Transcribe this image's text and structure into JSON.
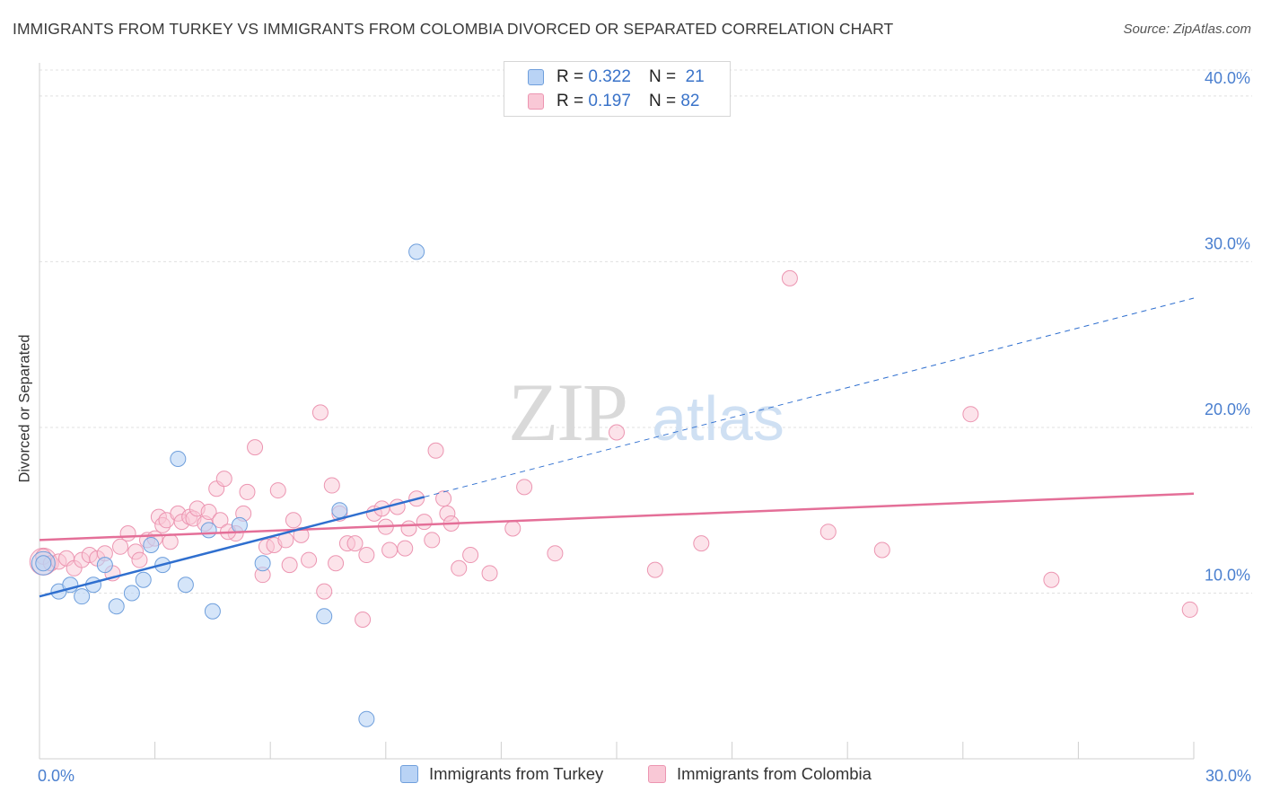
{
  "header": {
    "title": "IMMIGRANTS FROM TURKEY VS IMMIGRANTS FROM COLOMBIA DIVORCED OR SEPARATED CORRELATION CHART",
    "source": "Source: ZipAtlas.com"
  },
  "watermark": {
    "zip": "ZIP",
    "atlas": "atlas"
  },
  "colors": {
    "turkey_fill": "#b9d3f5",
    "turkey_stroke": "#6f9fdc",
    "turkey_line": "#2f6fcf",
    "colombia_fill": "#f9c8d6",
    "colombia_stroke": "#ec95b1",
    "colombia_line": "#e46f98",
    "tick_label": "#4a7fcf",
    "grid": "#e0e0e0"
  },
  "legend_top": {
    "rows": [
      {
        "r_label": "R =",
        "r_value": "0.322",
        "n_label": "N =",
        "n_value": "21"
      },
      {
        "r_label": "R =",
        "r_value": "0.197",
        "n_label": "N =",
        "n_value": "82"
      }
    ]
  },
  "chart_data": {
    "type": "scatter",
    "title": "IMMIGRANTS FROM TURKEY VS IMMIGRANTS FROM COLOMBIA DIVORCED OR SEPARATED CORRELATION CHART",
    "xlabel": "",
    "ylabel": "Divorced or Separated",
    "xlim": [
      0,
      30
    ],
    "ylim": [
      0,
      42
    ],
    "x_tick_labels": [
      {
        "value": 0,
        "label": "0.0%"
      },
      {
        "value": 30,
        "label": "30.0%"
      }
    ],
    "y_ticks": [
      {
        "value": 10,
        "label": "10.0%"
      },
      {
        "value": 20,
        "label": "20.0%"
      },
      {
        "value": 30,
        "label": "30.0%"
      },
      {
        "value": 40,
        "label": "40.0%"
      }
    ],
    "x_minor_ticks": [
      3,
      6,
      9,
      12,
      15,
      18,
      21,
      24,
      27,
      30
    ],
    "grid": true,
    "legend_position": "bottom",
    "series": [
      {
        "name": "Immigrants from Turkey",
        "R": 0.322,
        "N": 21,
        "trend": {
          "x0": 0,
          "y0": 9.8,
          "x1": 30,
          "y1": 27.8,
          "solid_until_x": 10.0
        },
        "points": [
          [
            0.1,
            11.8
          ],
          [
            0.5,
            10.1
          ],
          [
            0.8,
            10.5
          ],
          [
            1.1,
            9.8
          ],
          [
            1.4,
            10.5
          ],
          [
            1.7,
            11.7
          ],
          [
            2.0,
            9.2
          ],
          [
            2.4,
            10.0
          ],
          [
            2.7,
            10.8
          ],
          [
            2.9,
            12.9
          ],
          [
            3.2,
            11.7
          ],
          [
            3.6,
            18.1
          ],
          [
            3.8,
            10.5
          ],
          [
            4.4,
            13.8
          ],
          [
            4.5,
            8.9
          ],
          [
            5.2,
            14.1
          ],
          [
            5.8,
            11.8
          ],
          [
            7.4,
            8.6
          ],
          [
            7.8,
            15.0
          ],
          [
            8.5,
            2.4
          ],
          [
            9.8,
            30.6
          ]
        ]
      },
      {
        "name": "Immigrants from Colombia",
        "R": 0.197,
        "N": 82,
        "trend": {
          "x0": 0,
          "y0": 13.2,
          "x1": 30,
          "y1": 16.0
        },
        "points": [
          [
            0.1,
            12.2
          ],
          [
            0.3,
            11.8
          ],
          [
            0.5,
            11.9
          ],
          [
            0.7,
            12.1
          ],
          [
            0.9,
            11.5
          ],
          [
            1.1,
            12.0
          ],
          [
            1.3,
            12.3
          ],
          [
            1.5,
            12.1
          ],
          [
            1.7,
            12.4
          ],
          [
            1.9,
            11.2
          ],
          [
            2.1,
            12.8
          ],
          [
            2.3,
            13.6
          ],
          [
            2.5,
            12.5
          ],
          [
            2.6,
            12.0
          ],
          [
            2.8,
            13.2
          ],
          [
            3.0,
            13.3
          ],
          [
            3.1,
            14.6
          ],
          [
            3.2,
            14.1
          ],
          [
            3.3,
            14.4
          ],
          [
            3.4,
            13.1
          ],
          [
            3.6,
            14.8
          ],
          [
            3.7,
            14.3
          ],
          [
            3.9,
            14.6
          ],
          [
            4.0,
            14.5
          ],
          [
            4.1,
            15.1
          ],
          [
            4.3,
            14.2
          ],
          [
            4.4,
            14.9
          ],
          [
            4.6,
            16.3
          ],
          [
            4.7,
            14.4
          ],
          [
            4.8,
            16.9
          ],
          [
            5.1,
            13.6
          ],
          [
            5.3,
            14.8
          ],
          [
            5.4,
            16.1
          ],
          [
            5.6,
            18.8
          ],
          [
            5.8,
            11.1
          ],
          [
            5.9,
            12.8
          ],
          [
            6.1,
            12.9
          ],
          [
            6.2,
            16.2
          ],
          [
            6.4,
            13.2
          ],
          [
            6.5,
            11.7
          ],
          [
            6.6,
            14.4
          ],
          [
            7.0,
            12.0
          ],
          [
            7.3,
            20.9
          ],
          [
            7.4,
            10.1
          ],
          [
            7.6,
            16.5
          ],
          [
            7.7,
            11.8
          ],
          [
            7.8,
            14.8
          ],
          [
            8.0,
            13.0
          ],
          [
            8.2,
            13.0
          ],
          [
            8.4,
            8.4
          ],
          [
            8.5,
            12.3
          ],
          [
            8.7,
            14.8
          ],
          [
            8.9,
            15.1
          ],
          [
            9.1,
            12.6
          ],
          [
            9.3,
            15.2
          ],
          [
            9.5,
            12.7
          ],
          [
            9.6,
            13.9
          ],
          [
            9.8,
            15.7
          ],
          [
            10.0,
            14.3
          ],
          [
            10.2,
            13.2
          ],
          [
            10.3,
            18.6
          ],
          [
            10.5,
            15.7
          ],
          [
            10.6,
            14.8
          ],
          [
            10.9,
            11.5
          ],
          [
            11.2,
            12.3
          ],
          [
            11.7,
            11.2
          ],
          [
            12.3,
            13.9
          ],
          [
            12.6,
            16.4
          ],
          [
            13.4,
            12.4
          ],
          [
            15.0,
            19.7
          ],
          [
            16.0,
            11.4
          ],
          [
            17.2,
            13.0
          ],
          [
            19.5,
            29.0
          ],
          [
            20.5,
            13.7
          ],
          [
            21.9,
            12.6
          ],
          [
            24.2,
            20.8
          ],
          [
            26.3,
            10.8
          ],
          [
            29.9,
            9.0
          ],
          [
            4.9,
            13.7
          ],
          [
            6.8,
            13.5
          ],
          [
            9.0,
            14.0
          ],
          [
            10.7,
            14.2
          ]
        ]
      }
    ]
  }
}
